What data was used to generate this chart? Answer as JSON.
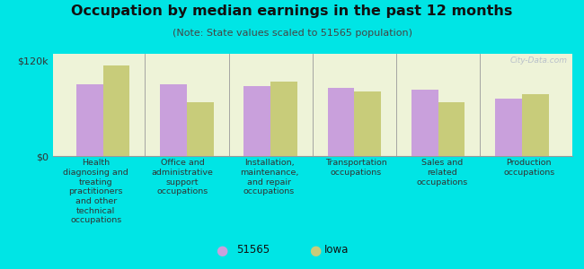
{
  "title": "Occupation by median earnings in the past 12 months",
  "subtitle": "(Note: State values scaled to 51565 population)",
  "background_color": "#00e5e5",
  "plot_bg_color": "#eef3d8",
  "categories": [
    "Health\ndiagnosing and\ntreating\npractitioners\nand other\ntechnical\noccupations",
    "Office and\nadministrative\nsupport\noccupations",
    "Installation,\nmaintenance,\nand repair\noccupations",
    "Transportation\noccupations",
    "Sales and\nrelated\noccupations",
    "Production\noccupations"
  ],
  "values_51565": [
    90000,
    90000,
    88000,
    85000,
    83000,
    72000
  ],
  "values_iowa": [
    113000,
    67000,
    93000,
    81000,
    67000,
    78000
  ],
  "color_51565": "#c9a0dc",
  "color_iowa": "#c8cc7a",
  "ylim": [
    0,
    128000
  ],
  "yticks": [
    0,
    120000
  ],
  "ytick_labels": [
    "$0",
    "$120k"
  ],
  "legend_label_51565": "51565",
  "legend_label_iowa": "Iowa",
  "bar_width": 0.32
}
